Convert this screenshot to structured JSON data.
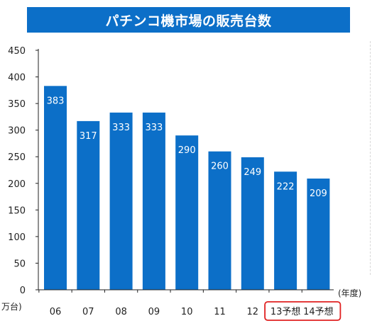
{
  "chart_data": {
    "type": "bar",
    "title": "パチンコ機市場の販売台数",
    "ylabel": "万台)",
    "xlabel": "(年度)",
    "ylim": [
      0,
      450
    ],
    "yticks": [
      0,
      50,
      100,
      150,
      200,
      250,
      300,
      350,
      400,
      450
    ],
    "categories": [
      "06",
      "07",
      "08",
      "09",
      "10",
      "11",
      "12",
      "13予想",
      "14予想"
    ],
    "values": [
      383,
      317,
      333,
      333,
      290,
      260,
      249,
      222,
      209
    ],
    "highlighted_categories": [
      "13予想",
      "14予想"
    ],
    "bar_color": "#0c6fc8",
    "highlight_color": "#e02020",
    "grid": false,
    "legend": "none"
  }
}
